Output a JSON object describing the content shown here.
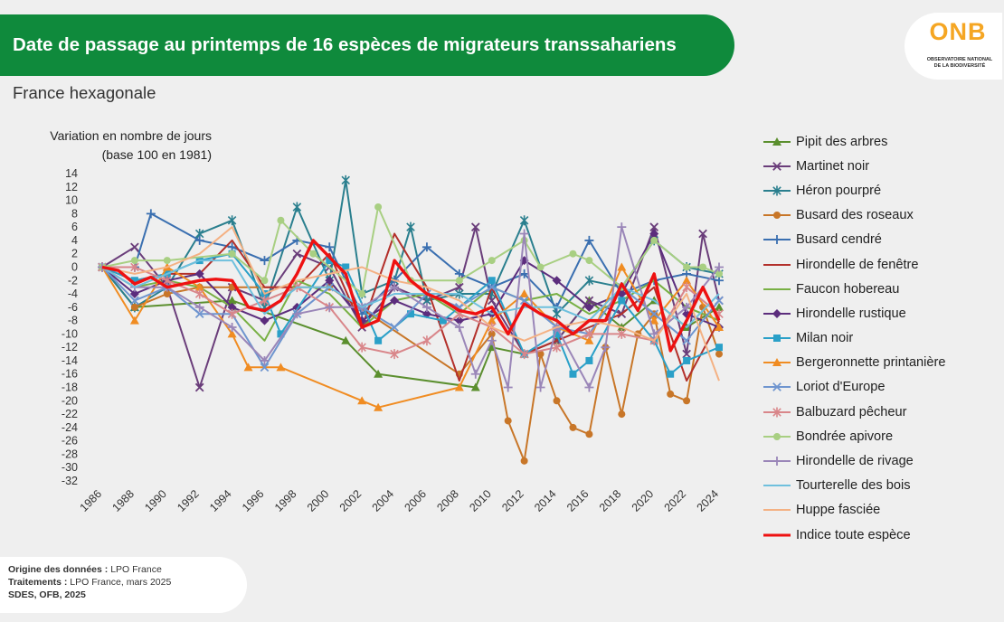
{
  "header": {
    "title": "Date de passage au printemps de 16 espèces de migrateurs transsahariens",
    "subtitle": "France hexagonale",
    "logo": {
      "text": "ONB",
      "line1": "OBSERVATOIRE NATIONAL",
      "line2": "DE LA BIODIVERSITÉ"
    }
  },
  "footer": {
    "origin_label": "Origine des données :",
    "origin_value": "LPO France",
    "treatment_label": "Traitements :",
    "treatment_value": "LPO France, mars 2025",
    "credit": "SDES, OFB, 2025"
  },
  "chart_data": {
    "type": "line",
    "ylabel_line1": "Variation en nombre de jours",
    "ylabel_line2": "(base 100 en 1981)",
    "ylim": [
      -32,
      14
    ],
    "yticks": [
      14,
      12,
      10,
      8,
      6,
      4,
      2,
      0,
      -2,
      -4,
      -6,
      -8,
      -10,
      -12,
      -14,
      -16,
      -18,
      -20,
      -22,
      -24,
      -26,
      -28,
      -30,
      -32
    ],
    "xlim": [
      1986,
      2024
    ],
    "xticks": [
      1986,
      1988,
      1990,
      1992,
      1994,
      1996,
      1998,
      2000,
      2002,
      2004,
      2006,
      2008,
      2010,
      2012,
      2014,
      2016,
      2018,
      2020,
      2022,
      2024
    ],
    "grid": false,
    "legend_position": "right",
    "series": [
      {
        "name": "Pipit des arbres",
        "color": "#5b8f2e",
        "marker": "triangle",
        "x": [
          1986,
          1988,
          1994,
          2001,
          2003,
          2009,
          2010,
          2012,
          2014,
          2016,
          2018,
          2020,
          2022,
          2024
        ],
        "y": [
          0,
          -6,
          -5,
          -11,
          -16,
          -18,
          -12,
          -13,
          -11,
          -5,
          -9,
          -5,
          -9,
          -6
        ]
      },
      {
        "name": "Martinet noir",
        "color": "#6a3d7a",
        "marker": "x",
        "x": [
          1986,
          1988,
          1990,
          1992,
          1994,
          1996,
          1998,
          2000,
          2002,
          2004,
          2006,
          2008,
          2009,
          2010,
          2012,
          2014,
          2016,
          2018,
          2020,
          2022,
          2023,
          2024
        ],
        "y": [
          0,
          3,
          -3,
          -18,
          -3,
          -5,
          2,
          0,
          -9,
          -3,
          -5,
          -3,
          6,
          -5,
          -13,
          -11,
          -5,
          -7,
          6,
          -13,
          5,
          -5
        ]
      },
      {
        "name": "Héron pourpré",
        "color": "#2a7f8e",
        "marker": "asterisk",
        "x": [
          1986,
          1988,
          1990,
          1992,
          1994,
          1996,
          1998,
          2000,
          2001,
          2002,
          2004,
          2005,
          2006,
          2008,
          2010,
          2012,
          2014,
          2016,
          2018,
          2020,
          2022,
          2024
        ],
        "y": [
          0,
          -6,
          -3,
          5,
          7,
          -6,
          9,
          -2,
          13,
          -4,
          -2,
          6,
          -5,
          -4,
          -4,
          7,
          -7,
          -2,
          -3,
          4,
          0,
          -1
        ]
      },
      {
        "name": "Busard des roseaux",
        "color": "#c87628",
        "marker": "circle",
        "x": [
          1988,
          1990,
          1992,
          1994,
          2000,
          2008,
          2010,
          2011,
          2012,
          2013,
          2014,
          2015,
          2016,
          2017,
          2018,
          2019,
          2020,
          2021,
          2022,
          2023,
          2024
        ],
        "y": [
          -6,
          -4,
          -3,
          -3,
          -3,
          -16,
          -10,
          -23,
          -29,
          -13,
          -20,
          -24,
          -25,
          -12,
          -22,
          -10,
          -7,
          -19,
          -20,
          -6,
          -13
        ]
      },
      {
        "name": "Busard cendré",
        "color": "#3a6fb0",
        "marker": "plus",
        "x": [
          1986,
          1988,
          1989,
          1992,
          1994,
          1996,
          1998,
          2000,
          2002,
          2004,
          2006,
          2008,
          2010,
          2012,
          2014,
          2016,
          2018,
          2020,
          2022,
          2024
        ],
        "y": [
          0,
          0,
          8,
          4,
          3,
          1,
          4,
          3,
          -7,
          -2,
          3,
          -1,
          -3,
          -1,
          -6,
          4,
          -4,
          -2,
          -1,
          -2
        ]
      },
      {
        "name": "Hirondelle de fenêtre",
        "color": "#b3302b",
        "marker": "none",
        "x": [
          1986,
          1988,
          1990,
          1992,
          1994,
          1996,
          1998,
          2000,
          2002,
          2004,
          2006,
          2008,
          2010,
          2012,
          2014,
          2016,
          2018,
          2020,
          2022,
          2024
        ],
        "y": [
          0,
          -2,
          -1,
          -1,
          4,
          -3,
          -3,
          2,
          -9,
          5,
          -3,
          -17,
          -3,
          -13,
          -11,
          -9,
          -7,
          -3,
          -17,
          -8
        ]
      },
      {
        "name": "Faucon hobereau",
        "color": "#78b044",
        "marker": "none",
        "x": [
          1986,
          1988,
          1990,
          1992,
          1994,
          1996,
          1998,
          2000,
          2002,
          2004,
          2006,
          2008,
          2010,
          2012,
          2014,
          2016,
          2018,
          2020,
          2022,
          2024
        ],
        "y": [
          0,
          -3,
          -2,
          -3,
          -6,
          -11,
          -2,
          -4,
          -9,
          -5,
          -4,
          -7,
          -3,
          -5,
          -4,
          -7,
          -5,
          -2,
          -6,
          -8
        ]
      },
      {
        "name": "Hirondelle rustique",
        "color": "#5c2d7d",
        "marker": "diamond",
        "x": [
          1986,
          1988,
          1990,
          1992,
          1994,
          1996,
          1998,
          2000,
          2002,
          2004,
          2006,
          2008,
          2010,
          2012,
          2014,
          2016,
          2018,
          2020,
          2022,
          2024
        ],
        "y": [
          0,
          -4,
          -2,
          -1,
          -6,
          -8,
          -6,
          -2,
          -8,
          -5,
          -7,
          -8,
          -7,
          1,
          -2,
          -6,
          -4,
          5,
          -7,
          -9
        ]
      },
      {
        "name": "Milan noir",
        "color": "#2aa0c8",
        "marker": "square",
        "x": [
          1986,
          1988,
          1990,
          1992,
          1994,
          1996,
          1997,
          2000,
          2001,
          2003,
          2005,
          2007,
          2010,
          2012,
          2014,
          2015,
          2016,
          2018,
          2020,
          2021,
          2022,
          2024
        ],
        "y": [
          0,
          -2,
          -1,
          1,
          2,
          -4,
          -10,
          1,
          0,
          -11,
          -7,
          -8,
          -2,
          -13,
          -10,
          -16,
          -14,
          -5,
          -11,
          -16,
          -14,
          -12
        ]
      },
      {
        "name": "Bergeronnette printanière",
        "color": "#f08c22",
        "marker": "triangle",
        "x": [
          1986,
          1988,
          1990,
          1992,
          1994,
          1995,
          1997,
          2002,
          2003,
          2008,
          2010,
          2012,
          2014,
          2016,
          2018,
          2020,
          2022,
          2024
        ],
        "y": [
          0,
          -8,
          0,
          -3,
          -10,
          -15,
          -15,
          -20,
          -21,
          -18,
          -8,
          -4,
          -9,
          -11,
          0,
          -8,
          -2,
          -9
        ]
      },
      {
        "name": "Loriot d'Europe",
        "color": "#6f95cf",
        "marker": "x",
        "x": [
          1986,
          1988,
          1990,
          1992,
          1994,
          1996,
          1998,
          2000,
          2002,
          2004,
          2006,
          2008,
          2010,
          2012,
          2014,
          2016,
          2018,
          2020,
          2022,
          2024
        ],
        "y": [
          0,
          -5,
          -3,
          -7,
          -7,
          -15,
          -7,
          -3,
          -6,
          -9,
          -4,
          -6,
          -3,
          -5,
          -9,
          -10,
          -3,
          -7,
          -11,
          -5
        ]
      },
      {
        "name": "Balbuzard pêcheur",
        "color": "#d9868a",
        "marker": "asterisk",
        "x": [
          1986,
          1988,
          1990,
          1992,
          1994,
          1996,
          1998,
          2000,
          2002,
          2004,
          2006,
          2008,
          2010,
          2012,
          2014,
          2016,
          2018,
          2020,
          2022,
          2024
        ],
        "y": [
          0,
          0,
          -2,
          -4,
          -7,
          -5,
          -3,
          -6,
          -12,
          -13,
          -11,
          -7,
          -9,
          -13,
          -12,
          -10,
          -10,
          -11,
          -3,
          -7
        ]
      },
      {
        "name": "Bondrée apivore",
        "color": "#a8cf82",
        "marker": "circle",
        "x": [
          1986,
          1988,
          1990,
          1994,
          1996,
          1997,
          1999,
          2002,
          2003,
          2005,
          2008,
          2010,
          2012,
          2013,
          2015,
          2016,
          2018,
          2020,
          2022,
          2023,
          2024
        ],
        "y": [
          0,
          1,
          1,
          2,
          -2,
          7,
          2,
          -4,
          9,
          -2,
          -2,
          1,
          4,
          0,
          2,
          1,
          -3,
          4,
          0,
          0,
          -1
        ]
      },
      {
        "name": "Hirondelle de rivage",
        "color": "#9a86b8",
        "marker": "plus",
        "x": [
          1986,
          1988,
          1990,
          1992,
          1994,
          1996,
          1998,
          2000,
          2002,
          2004,
          2006,
          2008,
          2009,
          2010,
          2011,
          2012,
          2013,
          2014,
          2016,
          2017,
          2018,
          2020,
          2022,
          2024
        ],
        "y": [
          0,
          -3,
          -3,
          -6,
          -9,
          -14,
          -7,
          -6,
          -6,
          -3,
          -6,
          -9,
          -16,
          -11,
          -18,
          5,
          -18,
          -9,
          -18,
          -12,
          6,
          -10,
          -6,
          0
        ]
      },
      {
        "name": "Tourterelle des bois",
        "color": "#6fc0dd",
        "marker": "none",
        "x": [
          1986,
          1988,
          1990,
          1992,
          1994,
          1996,
          1998,
          2000,
          2002,
          2004,
          2006,
          2008,
          2010,
          2012,
          2014,
          2016,
          2018,
          2020,
          2022,
          2024
        ],
        "y": [
          0,
          -3,
          -1,
          1,
          1,
          -7,
          -3,
          -3,
          -6,
          -4,
          -4,
          -4,
          -7,
          -6,
          -6,
          -8,
          -3,
          -5,
          -9,
          -4
        ]
      },
      {
        "name": "Huppe fasciée",
        "color": "#f4b183",
        "marker": "none",
        "x": [
          1986,
          1988,
          1990,
          1992,
          1994,
          1996,
          1998,
          2000,
          2002,
          2004,
          2006,
          2008,
          2010,
          2012,
          2014,
          2016,
          2018,
          2020,
          2022,
          2024
        ],
        "y": [
          0,
          -1,
          0,
          2,
          6,
          -4,
          -2,
          -1,
          0,
          -2,
          -3,
          -5,
          -9,
          -11,
          -9,
          -8,
          -9,
          -11,
          -4,
          -17
        ]
      },
      {
        "name": "Indice toute espèce",
        "color": "#ee1111",
        "marker": "none",
        "width": 3.4,
        "x": [
          1986,
          1987,
          1988,
          1989,
          1990,
          1991,
          1992,
          1993,
          1994,
          1995,
          1996,
          1997,
          1998,
          1999,
          2000,
          2001,
          2002,
          2003,
          2004,
          2005,
          2006,
          2007,
          2008,
          2009,
          2010,
          2011,
          2012,
          2013,
          2014,
          2015,
          2016,
          2017,
          2018,
          2019,
          2020,
          2021,
          2022,
          2023,
          2024
        ],
        "y": [
          0,
          -0.5,
          -2.5,
          -1.5,
          -3,
          -2.5,
          -2,
          -1.8,
          -2,
          -6,
          -6.5,
          -5,
          -1,
          4,
          1.5,
          -1,
          -9,
          -8,
          1,
          -2,
          -4,
          -5,
          -6.5,
          -7,
          -6,
          -10,
          -5.5,
          -7,
          -8,
          -10,
          -8,
          -8,
          -2.5,
          -6.5,
          -1,
          -12.5,
          -8,
          -3,
          -8
        ]
      }
    ]
  }
}
